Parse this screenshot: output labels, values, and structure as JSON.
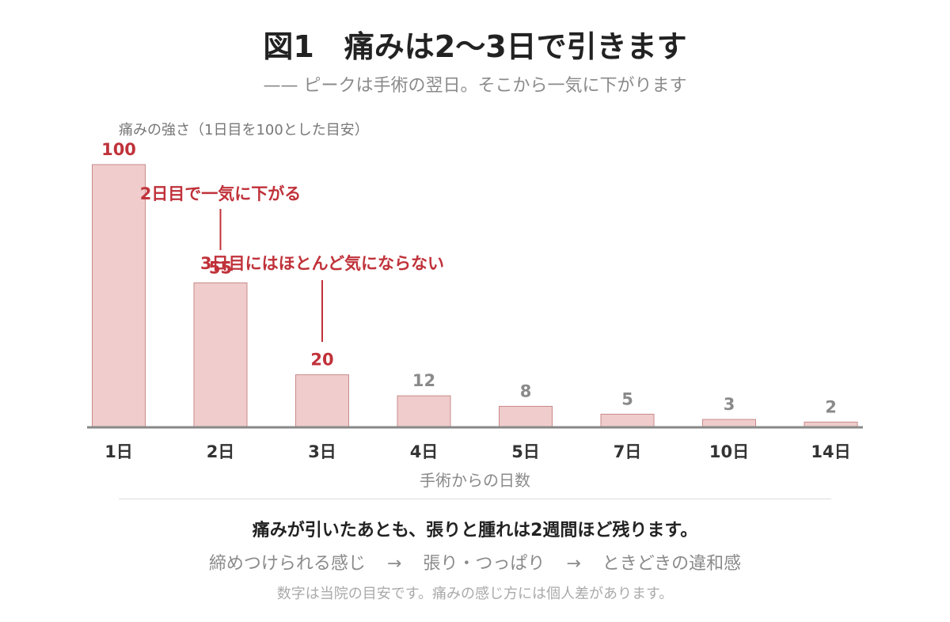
{
  "header": {
    "title": "図1　痛みは2〜3日で引きます",
    "subtitle": "—— ピークは手術の翌日。そこから一気に下がります"
  },
  "chart_data": {
    "type": "bar",
    "ylabel": "痛みの強さ（1日目を100とした目安）",
    "xlabel": "手術からの日数",
    "categories": [
      "1日",
      "2日",
      "3日",
      "4日",
      "5日",
      "7日",
      "10日",
      "14日"
    ],
    "values": [
      100,
      55,
      20,
      12,
      8,
      5,
      3,
      2
    ],
    "ylim": [
      0,
      100
    ],
    "grid": false,
    "legend": "none",
    "colors": {
      "bar_fill": "#f0cccc",
      "bar_stroke": "#c98a8a",
      "highlight_label": "#c0323a",
      "muted_label": "#8a8a8a",
      "axis": "#888888"
    },
    "annotations": [
      {
        "text": "2日目で一気に下がる",
        "category": "2日"
      },
      {
        "text": "3日目にはほとんど気にならない",
        "category": "3日"
      }
    ]
  },
  "footer": {
    "main": "痛みが引いたあとも、張りと腫れは2週間ほど残ります。",
    "flow": [
      "締めつけられる感じ",
      "→",
      "張り・つっぱり",
      "→",
      "ときどきの違和感"
    ],
    "note": "数字は当院の目安です。痛みの感じ方には個人差があります。"
  }
}
